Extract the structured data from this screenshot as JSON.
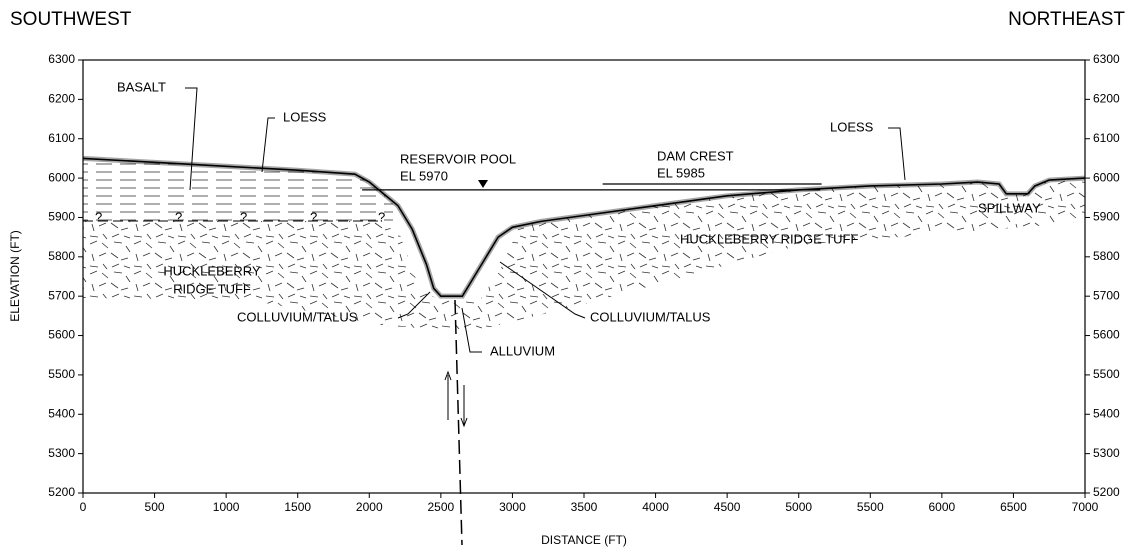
{
  "chart_data": {
    "type": "cross-section",
    "left_title": "SOUTHWEST",
    "right_title": "NORTHEAST",
    "xlabel": "DISTANCE (FT)",
    "ylabel": "ELEVATION (FT)",
    "xlim": [
      0,
      7000
    ],
    "xticks": [
      0,
      500,
      1000,
      1500,
      2000,
      2500,
      3000,
      3500,
      4000,
      4500,
      5000,
      5500,
      6000,
      6500,
      7000
    ],
    "ylim": [
      5200,
      6300
    ],
    "yticks": [
      5200,
      5300,
      5400,
      5500,
      5600,
      5700,
      5800,
      5900,
      6000,
      6100,
      6200,
      6300
    ],
    "series": [
      {
        "color": "#000000",
        "x": [
          0,
          500,
          1000,
          1500,
          1900,
          2000,
          2100,
          2200,
          2300,
          2400,
          2450,
          2500,
          2600,
          2650,
          2700,
          2800,
          2900,
          3000,
          3200,
          3500,
          4000,
          4500,
          5000,
          5500,
          6000,
          6250,
          6400,
          6450,
          6600,
          6650,
          6750,
          7000
        ],
        "values": [
          6050,
          6040,
          6030,
          6020,
          6010,
          5990,
          5960,
          5930,
          5870,
          5780,
          5720,
          5700,
          5700,
          5700,
          5730,
          5790,
          5850,
          5875,
          5890,
          5905,
          5930,
          5955,
          5970,
          5980,
          5985,
          5990,
          5985,
          5960,
          5960,
          5980,
          5995,
          6000
        ]
      }
    ],
    "reference_lines": [
      {
        "label": "RESERVOIR POOL",
        "value_label": "EL 5970",
        "y": 5970,
        "x": [
          1950,
          5150
        ]
      },
      {
        "label": "DAM CREST",
        "value_label": "EL 5985",
        "y": 5985,
        "x": [
          3630,
          5160
        ]
      }
    ],
    "annotations": [
      "BASALT",
      "LOESS",
      "LOESS",
      "HUCKLEBERRY",
      "RIDGE TUFF",
      "COLLUVIUM/TALUS",
      "COLLUVIUM/TALUS",
      "ALLUVIUM",
      "HUCKLEBERRY RIDGE TUFF",
      "SPILLWAY",
      "?",
      "?",
      "?",
      "?",
      "?"
    ]
  }
}
